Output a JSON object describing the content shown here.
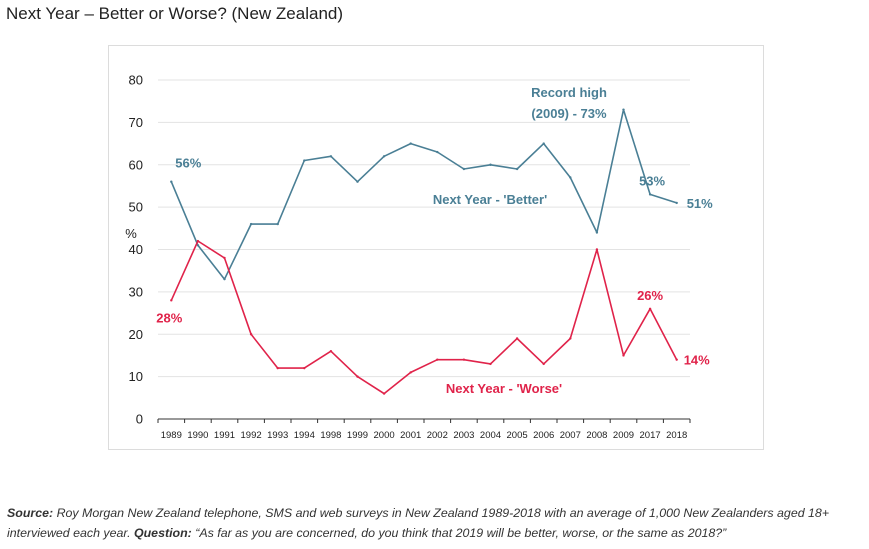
{
  "page_title": "Next Year – Better or Worse? (New Zealand)",
  "footnote": {
    "source_label": "Source:",
    "source_text": " Roy Morgan New Zealand telephone, SMS and web surveys in New Zealand 1989-2018 with an average of 1,000 New Zealanders aged 18+ interviewed each year. ",
    "question_label": "Question:",
    "question_text": " “As far as you are concerned, do you think that 2019 will be better, worse, or the same as 2018?”"
  },
  "colors": {
    "better": "#4a7f95",
    "worse": "#e0234a",
    "grid": "#e3e3e3",
    "axis": "#333333"
  },
  "chart_data": {
    "type": "line",
    "title": "Next Year – Better or Worse? (New Zealand)",
    "xlabel": "",
    "ylabel": "%",
    "ylim": [
      0,
      80
    ],
    "yticks": [
      "0",
      "10",
      "20",
      "30",
      "40",
      "50",
      "60",
      "70",
      "80"
    ],
    "categories": [
      "1989",
      "1990",
      "1991",
      "1992",
      "1993",
      "1994",
      "1998",
      "1999",
      "2000",
      "2001",
      "2002",
      "2003",
      "2004",
      "2005",
      "2006",
      "2007",
      "2008",
      "2009",
      "2017",
      "2018"
    ],
    "series": [
      {
        "name": "Next Year - 'Better'",
        "values": [
          56,
          41,
          33,
          46,
          46,
          61,
          62,
          56,
          62,
          65,
          63,
          59,
          60,
          59,
          65,
          57,
          44,
          73,
          53,
          51
        ]
      },
      {
        "name": "Next Year - 'Worse'",
        "values": [
          28,
          42,
          38,
          20,
          12,
          12,
          16,
          10,
          6,
          11,
          14,
          14,
          13,
          19,
          13,
          19,
          40,
          15,
          26,
          14
        ]
      }
    ],
    "annotations": {
      "better_series": "Next Year - 'Better'",
      "worse_series": "Next Year - 'Worse'",
      "record_line1": "Record high",
      "record_line2": "(2009) - 73%",
      "better_start": "56%",
      "better_2017": "53%",
      "better_end": "51%",
      "worse_start": "28%",
      "worse_2017": "26%",
      "worse_end": "14%"
    }
  }
}
